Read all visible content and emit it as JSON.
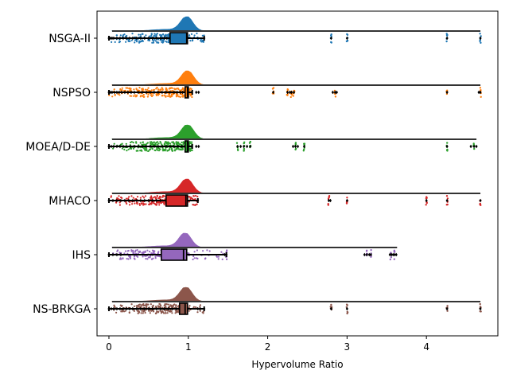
{
  "chart_data": {
    "type": "raincloud",
    "title": "",
    "xlabel": "Hypervolume Ratio",
    "ylabel": "",
    "xlim": [
      -0.15,
      4.9
    ],
    "xticks": [
      0,
      1,
      2,
      3,
      4
    ],
    "grid": false,
    "legend": "none",
    "series": [
      {
        "name": "NSGA-II",
        "color": "#1f77b4",
        "box": {
          "whisker_low": 0.0,
          "q1": 0.77,
          "median": 0.98,
          "q3": 0.99,
          "whisker_high": 1.2
        },
        "kde_peak": 0.98,
        "kde_max": 4.68,
        "outliers": [
          0.0,
          0.02,
          0.04,
          0.06,
          0.1,
          0.14,
          0.18,
          0.22,
          0.26,
          0.3,
          0.35,
          0.4,
          0.45,
          0.5,
          0.55,
          0.6,
          0.65,
          0.7,
          0.73,
          1.2,
          2.8,
          3.0,
          4.26,
          4.68
        ],
        "points_core": [
          0.0,
          1.2
        ],
        "far_points": [
          2.8,
          3.0,
          4.26,
          4.68
        ]
      },
      {
        "name": "NSPSO",
        "color": "#ff7f0e",
        "box": {
          "whisker_low": 0.0,
          "q1": 0.96,
          "median": 0.99,
          "q3": 1.0,
          "whisker_high": 1.05
        },
        "kde_peak": 0.99,
        "kde_max": 4.68,
        "outliers": [
          0.0,
          0.02,
          0.04,
          0.07,
          0.1,
          0.13,
          0.16,
          0.2,
          0.24,
          0.28,
          0.32,
          0.37,
          0.42,
          0.47,
          0.52,
          0.57,
          0.62,
          0.67,
          0.72,
          0.77,
          0.82,
          0.86,
          0.9,
          0.93,
          1.1,
          1.13,
          2.07,
          2.25,
          2.28,
          2.3,
          2.33,
          2.82,
          2.85,
          2.87,
          4.26,
          4.66,
          4.68
        ],
        "points_core": [
          0.0,
          1.13
        ],
        "far_points": [
          2.07,
          2.25,
          2.3,
          2.33,
          2.85,
          4.26,
          4.68
        ]
      },
      {
        "name": "MOEA/D-DE",
        "color": "#2ca02c",
        "box": {
          "whisker_low": 0.0,
          "q1": 0.96,
          "median": 0.99,
          "q3": 1.0,
          "whisker_high": 1.05
        },
        "kde_peak": 0.99,
        "kde_max": 4.63,
        "outliers": [
          0.0,
          0.03,
          0.06,
          0.1,
          0.14,
          0.18,
          0.22,
          0.27,
          0.32,
          0.37,
          0.42,
          0.47,
          0.52,
          0.57,
          0.62,
          0.67,
          0.72,
          0.77,
          0.82,
          0.87,
          0.92,
          1.1,
          1.13,
          1.62,
          1.66,
          1.7,
          1.74,
          1.78,
          2.32,
          2.35,
          2.38,
          2.46,
          4.26,
          4.56,
          4.6,
          4.63
        ],
        "points_core": [
          0.0,
          1.13
        ],
        "far_points": [
          1.62,
          1.7,
          1.78,
          2.35,
          2.46,
          4.26,
          4.6
        ]
      },
      {
        "name": "MHACO",
        "color": "#d62728",
        "box": {
          "whisker_low": 0.0,
          "q1": 0.72,
          "median": 0.97,
          "q3": 0.99,
          "whisker_high": 1.12
        },
        "kde_peak": 0.98,
        "kde_max": 4.68,
        "outliers": [
          0.0,
          0.05,
          0.1,
          0.15,
          0.2,
          0.25,
          0.3,
          0.35,
          0.4,
          0.45,
          0.5,
          0.55,
          0.6,
          0.65,
          1.12,
          2.77,
          2.79,
          3.0,
          4.0,
          4.26,
          4.68
        ],
        "points_core": [
          0.0,
          1.12
        ],
        "far_points": [
          2.77,
          3.0,
          4.0,
          4.26,
          4.68
        ]
      },
      {
        "name": "IHS",
        "color": "#9467bd",
        "box": {
          "whisker_low": 0.0,
          "q1": 0.66,
          "median": 0.94,
          "q3": 0.98,
          "whisker_high": 1.48
        },
        "kde_peak": 0.96,
        "kde_max": 3.63,
        "outliers": [
          0.0,
          0.05,
          0.1,
          0.15,
          1.46,
          1.48,
          3.22,
          3.25,
          3.28,
          3.3,
          3.54,
          3.56,
          3.58,
          3.6,
          3.62
        ],
        "points_core": [
          0.0,
          1.48
        ],
        "far_points": [
          1.48,
          3.25,
          3.3,
          3.55,
          3.6
        ]
      },
      {
        "name": "NS-BRKGA",
        "color": "#8c564b",
        "box": {
          "whisker_low": 0.0,
          "q1": 0.89,
          "median": 0.96,
          "q3": 0.99,
          "whisker_high": 1.2
        },
        "kde_peak": 0.97,
        "kde_max": 4.68,
        "outliers": [
          0.0,
          0.03,
          0.06,
          0.1,
          0.14,
          0.18,
          0.22,
          0.26,
          0.3,
          0.35,
          0.4,
          0.45,
          0.5,
          0.55,
          0.6,
          0.65,
          0.7,
          0.75,
          0.8,
          0.85,
          1.12,
          1.15,
          1.2,
          2.8,
          3.0,
          4.26,
          4.68
        ],
        "points_core": [
          0.0,
          1.2
        ],
        "far_points": [
          2.8,
          3.0,
          4.26,
          4.68
        ]
      }
    ]
  }
}
